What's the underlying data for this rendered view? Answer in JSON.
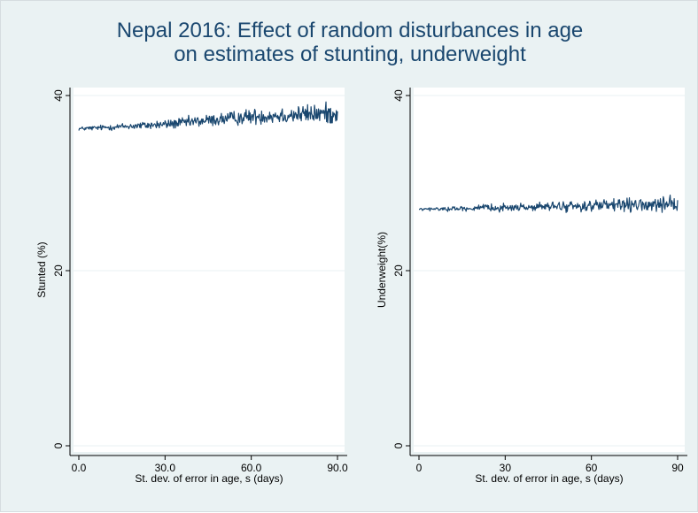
{
  "title": {
    "line1": "Nepal 2016: Effect of random disturbances in age",
    "line2": "on estimates of stunting, underweight"
  },
  "colors": {
    "background": "#eaf2f3",
    "plot_bg": "#ffffff",
    "series": "#1a476f",
    "grid": "#eaf2f3",
    "title": "#1a476f"
  },
  "chart_data": [
    {
      "type": "line",
      "xlabel": "St. dev. of error in age, s (days)",
      "ylabel": "Stunted (%)",
      "xlim": [
        0,
        90
      ],
      "ylim": [
        0,
        40
      ],
      "xticks": [
        0,
        30,
        60,
        90
      ],
      "xtick_labels": [
        "0.0",
        "30.0",
        "60.0",
        "90.0"
      ],
      "yticks": [
        0,
        20,
        40
      ],
      "ytick_labels": [
        "0",
        "20",
        "40"
      ],
      "grid": true,
      "series": [
        {
          "x_range": [
            0,
            90
          ],
          "n_points": 451,
          "trend": [
            [
              0,
              36.2
            ],
            [
              30,
              36.7
            ],
            [
              60,
              37.6
            ],
            [
              90,
              38.0
            ]
          ],
          "noise_amplitude": [
            [
              0,
              0.2
            ],
            [
              90,
              1.1
            ]
          ]
        }
      ]
    },
    {
      "type": "line",
      "xlabel": "St. dev. of error in age, s (days)",
      "ylabel": "Underweight(%)",
      "xlim": [
        0,
        90
      ],
      "ylim": [
        0,
        40
      ],
      "xticks": [
        0,
        30,
        60,
        90
      ],
      "xtick_labels": [
        "0",
        "30",
        "60",
        "90"
      ],
      "yticks": [
        0,
        20,
        40
      ],
      "ytick_labels": [
        "0",
        "20",
        "40"
      ],
      "grid": true,
      "series": [
        {
          "x_range": [
            0,
            90
          ],
          "n_points": 451,
          "trend": [
            [
              0,
              27.0
            ],
            [
              30,
              27.2
            ],
            [
              60,
              27.4
            ],
            [
              90,
              27.5
            ]
          ],
          "noise_amplitude": [
            [
              0,
              0.15
            ],
            [
              90,
              0.8
            ]
          ]
        }
      ]
    }
  ]
}
